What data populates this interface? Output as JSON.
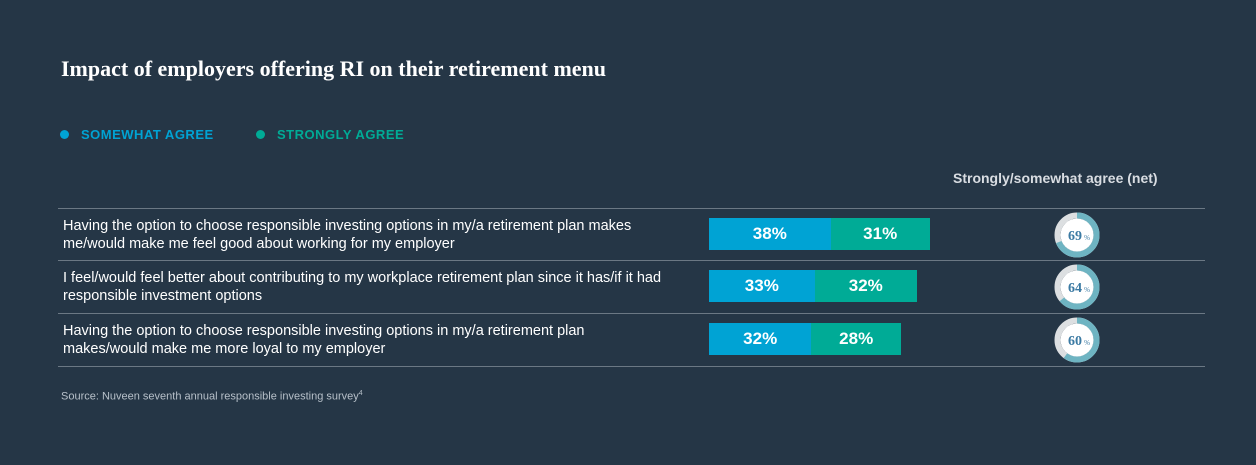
{
  "title": "Impact of employers offering RI on their retirement menu",
  "legend": [
    {
      "label": "SOMEWHAT AGREE",
      "color": "#00a3d4"
    },
    {
      "label": "STRONGLY AGREE",
      "color": "#00ab96"
    }
  ],
  "net_header": "Strongly/somewhat agree (net)",
  "source": "Source: Nuveen seventh annual responsible investing survey",
  "source_sup": "4",
  "chart_data": {
    "type": "bar",
    "stacked": true,
    "orientation": "horizontal",
    "categories": [
      "Having the option to choose responsible investing options in my/a retirement plan makes me/would make me feel good about working for my employer",
      "I feel/would feel better about contributing to my workplace retirement plan since it has/if it had responsible investment options",
      "Having the option to choose responsible investing options in my/a retirement plan makes/would make me more loyal to my employer"
    ],
    "series": [
      {
        "name": "SOMEWHAT AGREE",
        "values": [
          38,
          33,
          32
        ],
        "labels": [
          "38%",
          "33%",
          "32%"
        ],
        "color": "#00a3d4"
      },
      {
        "name": "STRONGLY AGREE",
        "values": [
          31,
          32,
          28
        ],
        "labels": [
          "31%",
          "32%",
          "28%"
        ],
        "color": "#00ab96"
      }
    ],
    "net": {
      "values": [
        69,
        64,
        60
      ],
      "labels": [
        "69",
        "64",
        "60"
      ],
      "unit": "%",
      "ring_color": "#6eb4c2",
      "rest_color": "#dcdfe1",
      "text_color": "#3b7aa3"
    }
  }
}
